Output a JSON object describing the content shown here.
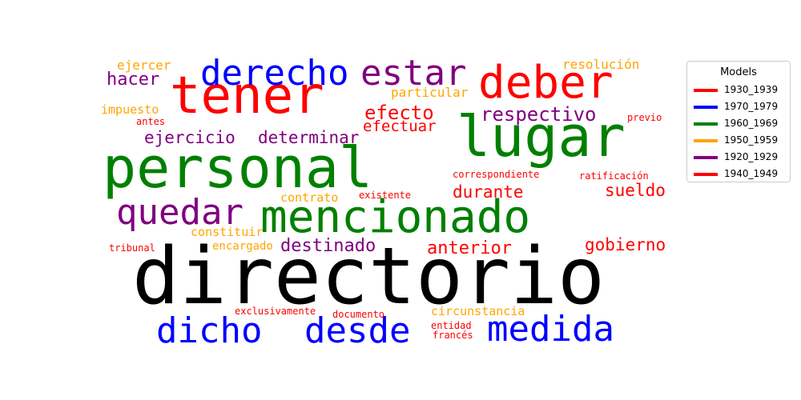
{
  "chart_data": {
    "type": "wordcloud",
    "legend": {
      "title": "Models",
      "placement": "top-right",
      "entries": [
        {
          "label": "1930_1939",
          "color": "#ff0000"
        },
        {
          "label": "1970_1979",
          "color": "#0000ff"
        },
        {
          "label": "1960_1969",
          "color": "#008000"
        },
        {
          "label": "1950_1959",
          "color": "#ffa500"
        },
        {
          "label": "1920_1929",
          "color": "#800080"
        },
        {
          "label": "1940_1949",
          "color": "#ff0000"
        }
      ]
    },
    "words": [
      {
        "text": "directorio",
        "color": "#000000"
      },
      {
        "text": "personal",
        "color": "#008000"
      },
      {
        "text": "lugar",
        "color": "#008000"
      },
      {
        "text": "tener",
        "color": "#ff0000"
      },
      {
        "text": "mencionado",
        "color": "#008000"
      },
      {
        "text": "deber",
        "color": "#ff0000"
      },
      {
        "text": "quedar",
        "color": "#800080"
      },
      {
        "text": "derecho",
        "color": "#0000ff"
      },
      {
        "text": "estar",
        "color": "#800080"
      },
      {
        "text": "medida",
        "color": "#0000ff"
      },
      {
        "text": "dicho",
        "color": "#0000ff"
      },
      {
        "text": "desde",
        "color": "#0000ff"
      },
      {
        "text": "respectivo",
        "color": "#800080"
      },
      {
        "text": "efecto",
        "color": "#ff0000"
      },
      {
        "text": "hacer",
        "color": "#800080"
      },
      {
        "text": "destinado",
        "color": "#800080"
      },
      {
        "text": "anterior",
        "color": "#ff0000"
      },
      {
        "text": "determinar",
        "color": "#800080"
      },
      {
        "text": "ejercicio",
        "color": "#800080"
      },
      {
        "text": "sueldo",
        "color": "#ff0000"
      },
      {
        "text": "gobierno",
        "color": "#ff0000"
      },
      {
        "text": "durante",
        "color": "#ff0000"
      },
      {
        "text": "efectuar",
        "color": "#ff0000"
      },
      {
        "text": "particular",
        "color": "#ffa500"
      },
      {
        "text": "resolución",
        "color": "#ffa500"
      },
      {
        "text": "ejercer",
        "color": "#ffa500"
      },
      {
        "text": "impuesto",
        "color": "#ffa500"
      },
      {
        "text": "constituir",
        "color": "#ffa500"
      },
      {
        "text": "contrato",
        "color": "#ffa500"
      },
      {
        "text": "circunstancia",
        "color": "#ffa500"
      },
      {
        "text": "encargado",
        "color": "#ffa500"
      },
      {
        "text": "antes",
        "color": "#ff0000"
      },
      {
        "text": "previo",
        "color": "#ff0000"
      },
      {
        "text": "correspondiente",
        "color": "#ff0000"
      },
      {
        "text": "ratificación",
        "color": "#ff0000"
      },
      {
        "text": "existente",
        "color": "#ff0000"
      },
      {
        "text": "tribunal",
        "color": "#ff0000"
      },
      {
        "text": "exclusivamente",
        "color": "#ff0000"
      },
      {
        "text": "documento",
        "color": "#ff0000"
      },
      {
        "text": "entidad",
        "color": "#ff0000"
      },
      {
        "text": "francés",
        "color": "#ff0000"
      }
    ]
  }
}
